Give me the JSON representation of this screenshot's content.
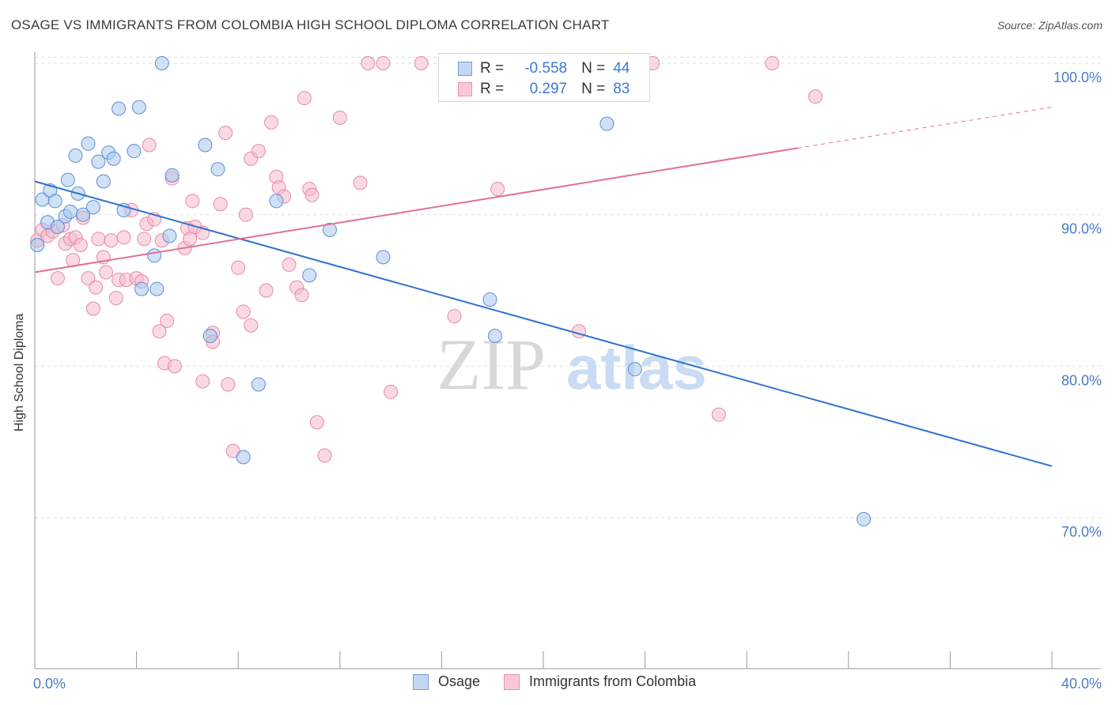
{
  "title": "OSAGE VS IMMIGRANTS FROM COLOMBIA HIGH SCHOOL DIPLOMA CORRELATION CHART",
  "source": "Source: ZipAtlas.com",
  "watermark": {
    "zip": "ZIP",
    "atlas": "atlas"
  },
  "legend": {
    "r_label": "R =",
    "n_label": "N =",
    "rows": [
      {
        "r": "-0.558",
        "n": "44",
        "fill": "#c4d7f2",
        "stroke": "#6f9fe0"
      },
      {
        "r": "0.297",
        "n": "83",
        "fill": "#f9c9d8",
        "stroke": "#ea8fae"
      }
    ]
  },
  "colors": {
    "osage_fill": "#a9c8ef",
    "osage_stroke": "#5b8fd6",
    "osage_line": "#2f72cc",
    "colombia_fill": "#f6b9cc",
    "colombia_stroke": "#e58aa9",
    "colombia_line": "#e0709a",
    "tick_text": "#4a7cc9",
    "grid": "#dddddd"
  },
  "chart_data": {
    "type": "scatter",
    "title": "OSAGE VS IMMIGRANTS FROM COLOMBIA HIGH SCHOOL DIPLOMA CORRELATION CHART",
    "xlabel": "",
    "ylabel": "High School Diploma",
    "xlim": [
      0,
      40
    ],
    "ylim": [
      61,
      100.5
    ],
    "x_tick_labels": [
      "0.0%",
      "40.0%"
    ],
    "y_ticks": [
      70,
      80,
      90,
      100
    ],
    "y_tick_labels": [
      "70.0%",
      "80.0%",
      "90.0%",
      "100.0%"
    ],
    "grid": true,
    "legend_position": "top-center",
    "series": [
      {
        "name": "Osage",
        "r": -0.558,
        "n": 44,
        "trend": {
          "x": [
            0,
            40
          ],
          "y": [
            92.2,
            73.4
          ]
        },
        "points": [
          [
            0.1,
            88.0
          ],
          [
            0.3,
            91.0
          ],
          [
            0.5,
            89.5
          ],
          [
            0.6,
            91.6
          ],
          [
            0.8,
            90.9
          ],
          [
            0.9,
            89.2
          ],
          [
            1.2,
            89.9
          ],
          [
            1.3,
            92.3
          ],
          [
            1.4,
            90.2
          ],
          [
            1.6,
            93.9
          ],
          [
            1.7,
            91.4
          ],
          [
            1.9,
            90.0
          ],
          [
            2.1,
            94.7
          ],
          [
            2.3,
            90.5
          ],
          [
            2.5,
            93.5
          ],
          [
            2.7,
            92.2
          ],
          [
            2.9,
            94.1
          ],
          [
            3.1,
            93.7
          ],
          [
            3.3,
            97.0
          ],
          [
            3.5,
            90.3
          ],
          [
            3.9,
            94.2
          ],
          [
            4.1,
            97.1
          ],
          [
            4.2,
            85.1
          ],
          [
            4.7,
            87.3
          ],
          [
            4.8,
            85.1
          ],
          [
            5.0,
            100.0
          ],
          [
            5.3,
            88.6
          ],
          [
            5.4,
            92.6
          ],
          [
            6.7,
            94.6
          ],
          [
            6.9,
            82.0
          ],
          [
            7.2,
            93.0
          ],
          [
            8.2,
            74.0
          ],
          [
            8.8,
            78.8
          ],
          [
            9.5,
            90.9
          ],
          [
            10.8,
            86.0
          ],
          [
            11.6,
            89.0
          ],
          [
            13.7,
            87.2
          ],
          [
            17.9,
            84.4
          ],
          [
            18.1,
            82.0
          ],
          [
            22.5,
            96.0
          ],
          [
            23.6,
            79.8
          ],
          [
            32.6,
            69.9
          ]
        ]
      },
      {
        "name": "Immigrants from Colombia",
        "r": 0.297,
        "n": 83,
        "trend": {
          "x": [
            0,
            30
          ],
          "y": [
            86.2,
            94.4
          ],
          "dashed_to": [
            40,
            97.1
          ]
        },
        "points": [
          [
            0.1,
            88.3
          ],
          [
            0.3,
            89.0
          ],
          [
            0.5,
            88.6
          ],
          [
            0.7,
            88.9
          ],
          [
            0.9,
            85.8
          ],
          [
            1.1,
            89.3
          ],
          [
            1.2,
            88.1
          ],
          [
            1.4,
            88.4
          ],
          [
            1.5,
            87.0
          ],
          [
            1.6,
            88.5
          ],
          [
            1.8,
            88.0
          ],
          [
            1.9,
            89.8
          ],
          [
            2.1,
            85.8
          ],
          [
            2.3,
            83.8
          ],
          [
            2.4,
            85.2
          ],
          [
            2.5,
            88.4
          ],
          [
            2.7,
            87.2
          ],
          [
            2.8,
            86.2
          ],
          [
            3.0,
            88.3
          ],
          [
            3.2,
            84.5
          ],
          [
            3.3,
            85.7
          ],
          [
            3.5,
            88.5
          ],
          [
            3.6,
            85.7
          ],
          [
            3.8,
            90.3
          ],
          [
            4.0,
            85.8
          ],
          [
            4.2,
            85.6
          ],
          [
            4.3,
            88.4
          ],
          [
            4.4,
            89.4
          ],
          [
            4.5,
            94.6
          ],
          [
            4.7,
            89.7
          ],
          [
            4.9,
            82.3
          ],
          [
            5.0,
            88.3
          ],
          [
            5.1,
            80.2
          ],
          [
            5.2,
            83.0
          ],
          [
            5.4,
            92.4
          ],
          [
            5.5,
            80.0
          ],
          [
            5.9,
            87.8
          ],
          [
            6.0,
            89.1
          ],
          [
            6.1,
            88.4
          ],
          [
            6.3,
            89.2
          ],
          [
            6.2,
            90.9
          ],
          [
            6.6,
            88.8
          ],
          [
            6.6,
            79.0
          ],
          [
            7.0,
            82.2
          ],
          [
            7.0,
            81.6
          ],
          [
            7.3,
            90.7
          ],
          [
            7.5,
            95.4
          ],
          [
            7.6,
            78.8
          ],
          [
            7.8,
            74.4
          ],
          [
            8.0,
            86.5
          ],
          [
            8.2,
            83.6
          ],
          [
            8.3,
            90.0
          ],
          [
            8.5,
            93.7
          ],
          [
            8.5,
            82.7
          ],
          [
            8.8,
            94.2
          ],
          [
            9.1,
            85.0
          ],
          [
            9.3,
            96.1
          ],
          [
            9.5,
            92.5
          ],
          [
            9.6,
            91.8
          ],
          [
            9.8,
            91.2
          ],
          [
            10.0,
            86.7
          ],
          [
            10.3,
            85.2
          ],
          [
            10.5,
            84.7
          ],
          [
            10.6,
            97.7
          ],
          [
            10.8,
            91.7
          ],
          [
            10.9,
            91.3
          ],
          [
            11.1,
            76.3
          ],
          [
            11.4,
            74.1
          ],
          [
            12.0,
            96.4
          ],
          [
            12.8,
            92.1
          ],
          [
            13.1,
            100.0
          ],
          [
            13.7,
            100.0
          ],
          [
            14.0,
            78.3
          ],
          [
            15.2,
            100.0
          ],
          [
            16.5,
            83.3
          ],
          [
            18.2,
            91.7
          ],
          [
            21.4,
            82.3
          ],
          [
            24.3,
            100.0
          ],
          [
            26.9,
            76.8
          ],
          [
            29.0,
            100.0
          ],
          [
            30.7,
            97.8
          ]
        ]
      }
    ]
  }
}
